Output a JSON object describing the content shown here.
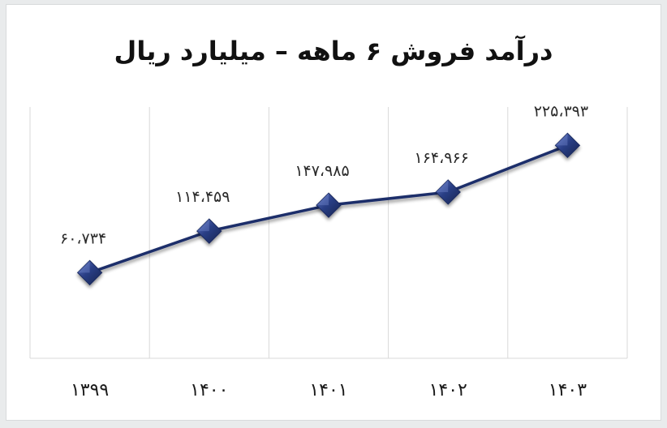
{
  "chart_data": {
    "type": "line",
    "title": "درآمد فروش ۶ ماهه – میلیارد ریال",
    "categories": [
      "۱۳۹۹",
      "۱۴۰۰",
      "۱۴۰۱",
      "۱۴۰۲",
      "۱۴۰۳"
    ],
    "series": [
      {
        "values": [
          60734,
          114459,
          147985,
          164966,
          225393
        ],
        "labels": [
          "۶۰،۷۳۴",
          "۱۱۴،۴۵۹",
          "۱۴۷،۹۸۵",
          "۱۶۴،۹۶۶",
          "۲۲۵،۳۹۳"
        ]
      }
    ],
    "ylim": [
      -50000,
      275000
    ],
    "grid": "vertical",
    "line_color": "#1f2f6b",
    "marker_color": "#2a3f86",
    "marker": "diamond"
  }
}
